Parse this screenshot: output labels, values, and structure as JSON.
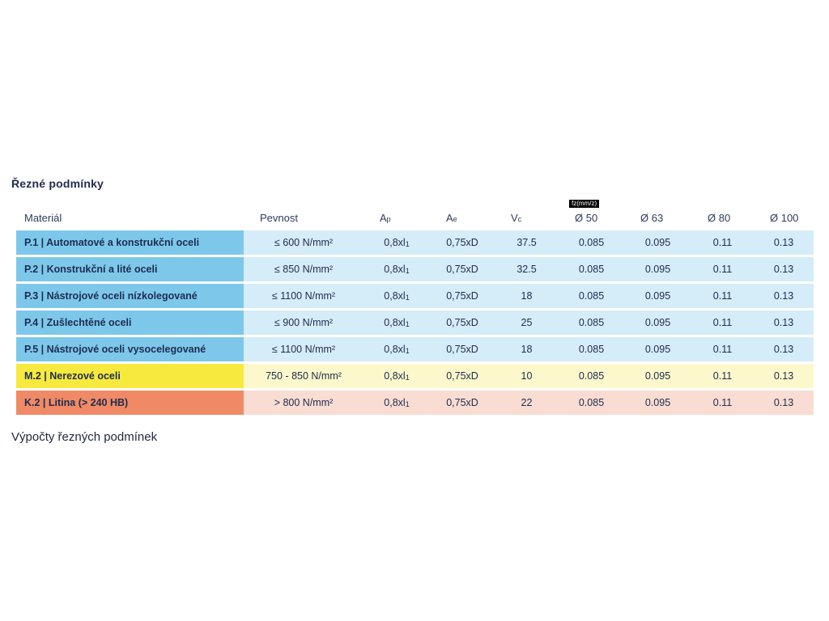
{
  "page": {
    "title": "Řezné podmínky",
    "section_heading": "Výpočty řezných podmínek"
  },
  "table": {
    "fz_badge": "fz(mm/z)",
    "headers": {
      "material": "Materiál",
      "pevnost": "Pevnost",
      "ap": {
        "base": "A",
        "sub": "p"
      },
      "ae": {
        "base": "A",
        "sub": "e"
      },
      "vc": {
        "base": "V",
        "sub": "c"
      },
      "d50": "Ø 50",
      "d63": "Ø 63",
      "d80": "Ø 80",
      "d100": "Ø 100"
    },
    "rows": [
      {
        "material": "P.1 | Automatové a konstrukční oceli",
        "pevnost": "≤ 600 N/mm²",
        "ap_main": "0,8xl",
        "ap_sub": "1",
        "ae": "0,75xD",
        "vc": "37.5",
        "d50": "0.085",
        "d63": "0.095",
        "d80": "0.11",
        "d100": "0.13",
        "theme": "blue"
      },
      {
        "material": "P.2 | Konstrukční a lité oceli",
        "pevnost": "≤ 850 N/mm²",
        "ap_main": "0,8xl",
        "ap_sub": "1",
        "ae": "0,75xD",
        "vc": "32.5",
        "d50": "0.085",
        "d63": "0.095",
        "d80": "0.11",
        "d100": "0.13",
        "theme": "blue"
      },
      {
        "material": "P.3 | Nástrojové oceli nízkolegované",
        "pevnost": "≤ 1100 N/mm²",
        "ap_main": "0,8xl",
        "ap_sub": "1",
        "ae": "0,75xD",
        "vc": "18",
        "d50": "0.085",
        "d63": "0.095",
        "d80": "0.11",
        "d100": "0.13",
        "theme": "blue"
      },
      {
        "material": "P.4 | Zušlechtěné oceli",
        "pevnost": "≤ 900 N/mm²",
        "ap_main": "0,8xl",
        "ap_sub": "1",
        "ae": "0,75xD",
        "vc": "25",
        "d50": "0.085",
        "d63": "0.095",
        "d80": "0.11",
        "d100": "0.13",
        "theme": "blue"
      },
      {
        "material": "P.5 | Nástrojové oceli vysocelegované",
        "pevnost": "≤ 1100 N/mm²",
        "ap_main": "0,8xl",
        "ap_sub": "1",
        "ae": "0,75xD",
        "vc": "18",
        "d50": "0.085",
        "d63": "0.095",
        "d80": "0.11",
        "d100": "0.13",
        "theme": "blue"
      },
      {
        "material": "M.2 | Nerezové oceli",
        "pevnost": "750 - 850 N/mm²",
        "ap_main": "0,8xl",
        "ap_sub": "1",
        "ae": "0,75xD",
        "vc": "10",
        "d50": "0.085",
        "d63": "0.095",
        "d80": "0.11",
        "d100": "0.13",
        "theme": "yellow"
      },
      {
        "material": "K.2 | Litina (> 240 HB)",
        "pevnost": "> 800 N/mm²",
        "ap_main": "0,8xl",
        "ap_sub": "1",
        "ae": "0,75xD",
        "vc": "22",
        "d50": "0.085",
        "d63": "0.095",
        "d80": "0.11",
        "d100": "0.13",
        "theme": "red"
      }
    ],
    "colors": {
      "blue_strong": "#7dc8ea",
      "blue_soft": "#d5ecf9",
      "yellow_strong": "#f7e93d",
      "yellow_soft": "#fcf8cb",
      "red_strong": "#f08a66",
      "red_soft": "#f9dcd2",
      "text": "#1e2c4f",
      "badge_bg": "#000000",
      "badge_text": "#ffffff"
    }
  }
}
